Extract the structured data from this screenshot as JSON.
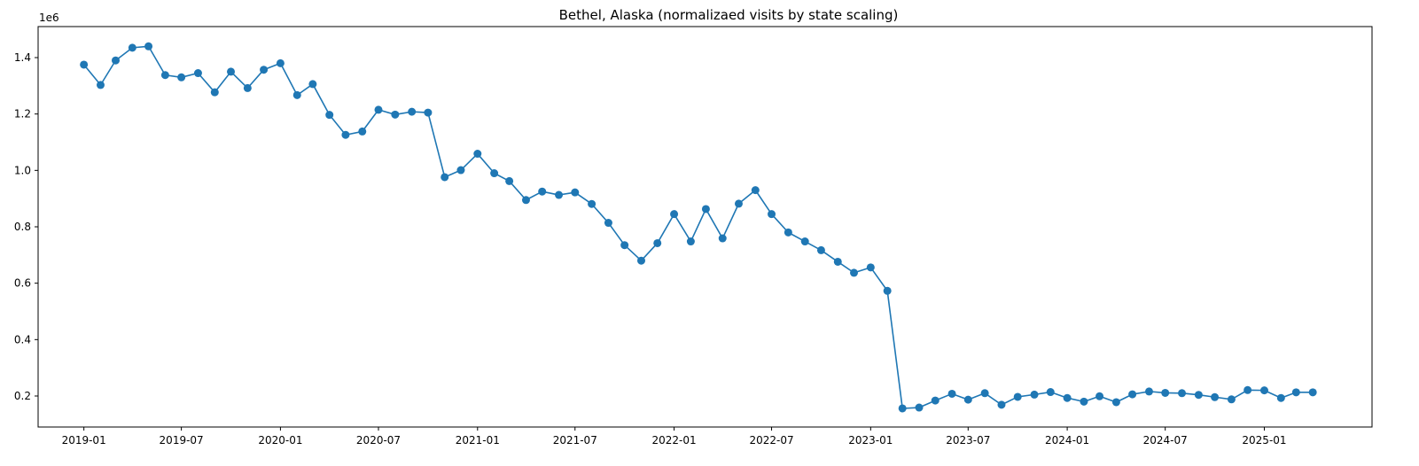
{
  "chart_data": {
    "type": "line",
    "title": "Bethel, Alaska (normalizaed visits by state scaling)",
    "xlabel": "",
    "ylabel": "",
    "y_scale_label": "1e6",
    "y_multiplier": 1000000,
    "ylim": [
      0.09,
      1.51
    ],
    "xlim": [
      "2018-10-08",
      "2025-07-20"
    ],
    "grid": false,
    "legend": "none",
    "line_color": "#1f77b4",
    "y_ticks": [
      {
        "value": 0.2,
        "label": "0.2"
      },
      {
        "value": 0.4,
        "label": "0.4"
      },
      {
        "value": 0.6,
        "label": "0.6"
      },
      {
        "value": 0.8,
        "label": "0.8"
      },
      {
        "value": 1.0,
        "label": "1.0"
      },
      {
        "value": 1.2,
        "label": "1.2"
      },
      {
        "value": 1.4,
        "label": "1.4"
      }
    ],
    "x_ticks": [
      {
        "value": "2019-01-01",
        "label": "2019-01"
      },
      {
        "value": "2019-07-01",
        "label": "2019-07"
      },
      {
        "value": "2020-01-01",
        "label": "2020-01"
      },
      {
        "value": "2020-07-01",
        "label": "2020-07"
      },
      {
        "value": "2021-01-01",
        "label": "2021-01"
      },
      {
        "value": "2021-07-01",
        "label": "2021-07"
      },
      {
        "value": "2022-01-01",
        "label": "2022-01"
      },
      {
        "value": "2022-07-01",
        "label": "2022-07"
      },
      {
        "value": "2023-01-01",
        "label": "2023-01"
      },
      {
        "value": "2023-07-01",
        "label": "2023-07"
      },
      {
        "value": "2024-01-01",
        "label": "2024-01"
      },
      {
        "value": "2024-07-01",
        "label": "2024-07"
      },
      {
        "value": "2025-01-01",
        "label": "2025-01"
      }
    ],
    "series": [
      {
        "x": [
          "2019-01-01",
          "2019-02-01",
          "2019-03-01",
          "2019-04-01",
          "2019-05-01",
          "2019-06-01",
          "2019-07-01",
          "2019-08-01",
          "2019-09-01",
          "2019-10-01",
          "2019-11-01",
          "2019-12-01",
          "2020-01-01",
          "2020-02-01",
          "2020-03-01",
          "2020-04-01",
          "2020-05-01",
          "2020-06-01",
          "2020-07-01",
          "2020-08-01",
          "2020-09-01",
          "2020-10-01",
          "2020-11-01",
          "2020-12-01",
          "2021-01-01",
          "2021-02-01",
          "2021-03-01",
          "2021-04-01",
          "2021-05-01",
          "2021-06-01",
          "2021-07-01",
          "2021-08-01",
          "2021-09-01",
          "2021-10-01",
          "2021-11-01",
          "2021-12-01",
          "2022-01-01",
          "2022-02-01",
          "2022-03-01",
          "2022-04-01",
          "2022-05-01",
          "2022-06-01",
          "2022-07-01",
          "2022-08-01",
          "2022-09-01",
          "2022-10-01",
          "2022-11-01",
          "2022-12-01",
          "2023-01-01",
          "2023-02-01",
          "2023-03-01",
          "2023-04-01",
          "2023-05-01",
          "2023-06-01",
          "2023-07-01",
          "2023-08-01",
          "2023-09-01",
          "2023-10-01",
          "2023-11-01",
          "2023-12-01",
          "2024-01-01",
          "2024-02-01",
          "2024-03-01",
          "2024-04-01",
          "2024-05-01",
          "2024-06-01",
          "2024-07-01",
          "2024-08-01",
          "2024-09-01",
          "2024-10-01",
          "2024-11-01",
          "2024-12-01",
          "2025-01-01",
          "2025-02-01",
          "2025-03-01",
          "2025-04-01"
        ],
        "values": [
          1.375,
          1.303,
          1.39,
          1.435,
          1.44,
          1.338,
          1.33,
          1.345,
          1.277,
          1.35,
          1.292,
          1.357,
          1.38,
          1.267,
          1.306,
          1.197,
          1.126,
          1.138,
          1.215,
          1.198,
          1.208,
          1.205,
          0.976,
          1.001,
          1.059,
          0.99,
          0.962,
          0.895,
          0.925,
          0.913,
          0.922,
          0.881,
          0.814,
          0.735,
          0.68,
          0.742,
          0.845,
          0.748,
          0.863,
          0.759,
          0.882,
          0.93,
          0.845,
          0.78,
          0.748,
          0.717,
          0.676,
          0.637,
          0.656,
          0.573,
          0.156,
          0.159,
          0.184,
          0.208,
          0.187,
          0.21,
          0.169,
          0.197,
          0.205,
          0.214,
          0.193,
          0.18,
          0.199,
          0.178,
          0.206,
          0.216,
          0.211,
          0.21,
          0.204,
          0.196,
          0.188,
          0.221,
          0.22,
          0.193,
          0.213,
          0.213
        ]
      }
    ]
  }
}
